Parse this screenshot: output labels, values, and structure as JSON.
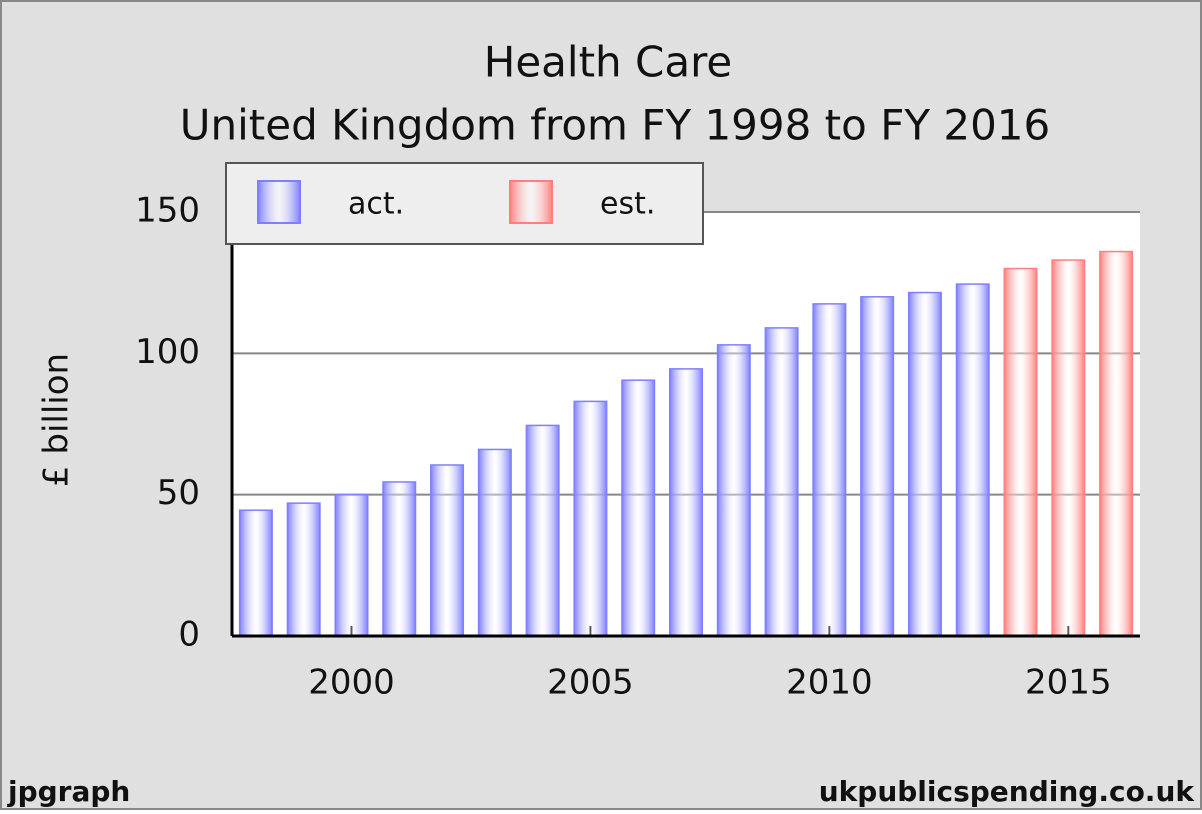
{
  "chart_data": {
    "type": "bar",
    "title": [
      "Health Care",
      "United Kingdom from FY 1998 to FY 2016"
    ],
    "y_label": "£ billion",
    "x": [
      1998,
      1999,
      2000,
      2001,
      2002,
      2003,
      2004,
      2005,
      2006,
      2007,
      2008,
      2009,
      2010,
      2011,
      2012,
      2013,
      2014,
      2015,
      2016
    ],
    "xlim": [
      1997.5,
      2016.5
    ],
    "xticks": [
      2000,
      2005,
      2010,
      2015
    ],
    "ylim": [
      0,
      150
    ],
    "yticks": [
      0,
      50,
      100,
      150
    ],
    "grid": true,
    "legend": "top-left",
    "series": [
      {
        "name": "act.",
        "color": "#7f7fff",
        "values": [
          44.5,
          47,
          50,
          54.5,
          60.5,
          66,
          74.5,
          83,
          90.5,
          94.5,
          103,
          109,
          117.5,
          120,
          121.5,
          124.5,
          null,
          null,
          null
        ]
      },
      {
        "name": "est.",
        "color": "#ff7f7f",
        "values": [
          null,
          null,
          null,
          null,
          null,
          null,
          null,
          null,
          null,
          null,
          null,
          null,
          null,
          null,
          null,
          null,
          130,
          133,
          136
        ]
      }
    ],
    "footer_left": "jpgraph",
    "footer_right": "ukpublicspending.co.uk"
  }
}
